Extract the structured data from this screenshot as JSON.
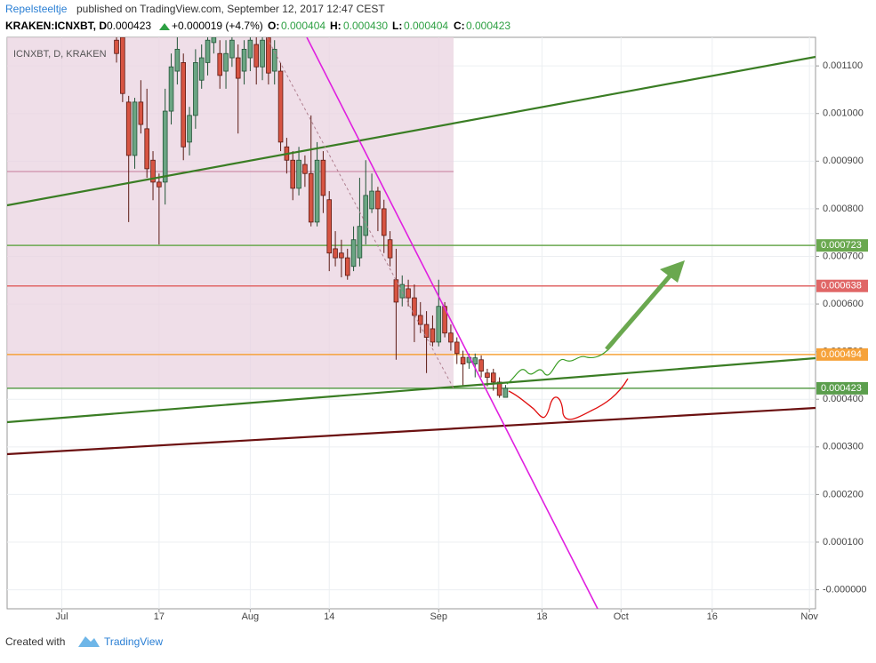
{
  "header": {
    "author": "Repelsteeltje",
    "published": "published on TradingView.com, September 12, 2017 12:47 CEST",
    "symbol": "KRAKEN:ICNXBT, D",
    "price": "0.000423",
    "change": "+0.000019 (+4.7%)",
    "open_label": "O:",
    "open": "0.000404",
    "high_label": "H:",
    "high": "0.000430",
    "low_label": "L:",
    "low": "0.000404",
    "close_label": "C:",
    "close": "0.000423"
  },
  "footer": {
    "created": "Created with",
    "brand": "TradingView"
  },
  "chart_data": {
    "type": "candlestick",
    "legend": "ICNXBT, D, KRAKEN",
    "up_color": "#6ba583",
    "down_color": "#d75442",
    "x": [
      "2017-07-10",
      "2017-07-11",
      "2017-07-12",
      "2017-07-13",
      "2017-07-14",
      "2017-07-15",
      "2017-07-16",
      "2017-07-17",
      "2017-07-18",
      "2017-07-19",
      "2017-07-20",
      "2017-07-21",
      "2017-07-22",
      "2017-07-23",
      "2017-07-24",
      "2017-07-25",
      "2017-07-26",
      "2017-07-27",
      "2017-07-28",
      "2017-07-29",
      "2017-07-30",
      "2017-07-31",
      "2017-08-01",
      "2017-08-02",
      "2017-08-03",
      "2017-08-04",
      "2017-08-05",
      "2017-08-06",
      "2017-08-07",
      "2017-08-08",
      "2017-08-09",
      "2017-08-10",
      "2017-08-11",
      "2017-08-12",
      "2017-08-13",
      "2017-08-14",
      "2017-08-15",
      "2017-08-16",
      "2017-08-17",
      "2017-08-18",
      "2017-08-19",
      "2017-08-20",
      "2017-08-21",
      "2017-08-22",
      "2017-08-23",
      "2017-08-24",
      "2017-08-25",
      "2017-08-26",
      "2017-08-27",
      "2017-08-28",
      "2017-08-29",
      "2017-08-30",
      "2017-08-31",
      "2017-09-01",
      "2017-09-02",
      "2017-09-03",
      "2017-09-04",
      "2017-09-05",
      "2017-09-06",
      "2017-09-07",
      "2017-09-08",
      "2017-09-09",
      "2017-09-10",
      "2017-09-11",
      "2017-09-12"
    ],
    "open": [
      0.001154,
      0.00116,
      0.001024,
      0.000912,
      0.001024,
      0.000968,
      0.000902,
      0.000856,
      0.000856,
      0.001005,
      0.001089,
      0.001107,
      0.00094,
      0.000996,
      0.00107,
      0.001107,
      0.001149,
      0.001126,
      0.001089,
      0.001117,
      0.001117,
      0.001089,
      0.001117,
      0.001145,
      0.001098,
      0.00116,
      0.001089,
      0.001089,
      0.00093,
      0.000902,
      0.000843,
      0.000893,
      0.000874,
      0.000772,
      0.000902,
      0.000819,
      0.000716,
      0.000707,
      0.000697,
      0.000679,
      0.000697,
      0.000744,
      0.0008,
      0.000837,
      0.0008,
      0.000735,
      0.000651,
      0.000613,
      0.000632,
      0.000613,
      0.000576,
      0.000557,
      0.000548,
      0.00052,
      0.000595,
      0.000539,
      0.00052,
      0.000488,
      0.000477,
      0.000474,
      0.000483,
      0.000455,
      0.000455,
      0.000436,
      0.000404
    ],
    "high": [
      0.001173,
      0.001167,
      0.001037,
      0.001033,
      0.00107,
      0.001052,
      0.000921,
      0.000874,
      0.001052,
      0.001126,
      0.00116,
      0.001126,
      0.001014,
      0.001135,
      0.001145,
      0.00116,
      0.001166,
      0.001154,
      0.001154,
      0.001166,
      0.001145,
      0.001154,
      0.001166,
      0.001166,
      0.001166,
      0.001167,
      0.001154,
      0.001107,
      0.000949,
      0.000921,
      0.00093,
      0.000912,
      0.000996,
      0.00094,
      0.000921,
      0.000837,
      0.000753,
      0.000735,
      0.000716,
      0.000763,
      0.000865,
      0.000902,
      0.000874,
      0.000846,
      0.000819,
      0.000753,
      0.000716,
      0.00066,
      0.000651,
      0.000641,
      0.000604,
      0.000585,
      0.000576,
      0.000651,
      0.000604,
      0.000557,
      0.00053,
      0.000502,
      0.000496,
      0.000496,
      0.000492,
      0.000464,
      0.000464,
      0.000446,
      0.00043
    ],
    "low": [
      0.001107,
      0.001024,
      0.000772,
      0.000884,
      0.000958,
      0.000865,
      0.000818,
      0.000725,
      0.000809,
      0.000977,
      0.001061,
      0.000902,
      0.000912,
      0.000968,
      0.001052,
      0.00108,
      0.001126,
      0.001052,
      0.001052,
      0.001098,
      0.000958,
      0.001061,
      0.001089,
      0.001061,
      0.00107,
      0.001061,
      0.001061,
      0.000921,
      0.000874,
      0.000818,
      0.000828,
      0.000846,
      0.000763,
      0.000763,
      0.000791,
      0.000669,
      0.000679,
      0.000656,
      0.000651,
      0.000669,
      0.000679,
      0.000725,
      0.000791,
      0.000753,
      0.000707,
      0.000679,
      0.000483,
      0.000595,
      0.000595,
      0.00052,
      0.000539,
      0.000455,
      0.000511,
      0.000511,
      0.00053,
      0.000502,
      0.000474,
      0.000427,
      0.000464,
      0.000446,
      0.000446,
      0.000427,
      0.000418,
      0.000403,
      0.000404
    ],
    "close": [
      0.001126,
      0.001042,
      0.000912,
      0.001024,
      0.000977,
      0.000884,
      0.000856,
      0.000846,
      0.001005,
      0.001098,
      0.001135,
      0.00093,
      0.000996,
      0.001107,
      0.001117,
      0.001154,
      0.00116,
      0.00108,
      0.001126,
      0.001154,
      0.001074,
      0.001135,
      0.001154,
      0.001098,
      0.001154,
      0.001085,
      0.001135,
      0.00094,
      0.000902,
      0.000843,
      0.000902,
      0.000874,
      0.000772,
      0.000902,
      0.000828,
      0.000707,
      0.000697,
      0.000697,
      0.00066,
      0.000735,
      0.000763,
      0.000828,
      0.000837,
      0.0008,
      0.000744,
      0.000697,
      0.000604,
      0.000641,
      0.000613,
      0.000576,
      0.000557,
      0.00053,
      0.00052,
      0.000595,
      0.000539,
      0.00052,
      0.000496,
      0.000474,
      0.000488,
      0.000487,
      0.000459,
      0.000446,
      0.000436,
      0.000408,
      0.000423
    ],
    "levels": [
      {
        "value": 0.000723,
        "color": "#6aa84f"
      },
      {
        "value": 0.000638,
        "color": "#e06666"
      },
      {
        "value": 0.000494,
        "color": "#f6a23a"
      },
      {
        "value": 0.000423,
        "color": "#5b9e4d"
      }
    ],
    "xlim": [
      "2017-06-22",
      "2017-11-02"
    ],
    "xticks": [
      {
        "value": "2017-07-01",
        "label": "Jul"
      },
      {
        "value": "2017-07-17",
        "label": "17"
      },
      {
        "value": "2017-08-01",
        "label": "Aug"
      },
      {
        "value": "2017-08-14",
        "label": "14"
      },
      {
        "value": "2017-09-01",
        "label": "Sep"
      },
      {
        "value": "2017-09-18",
        "label": "18"
      },
      {
        "value": "2017-10-01",
        "label": "Oct"
      },
      {
        "value": "2017-10-16",
        "label": "16"
      },
      {
        "value": "2017-11-01",
        "label": "Nov"
      }
    ],
    "ylim": [
      -4e-05,
      0.00116
    ],
    "yticks": [
      {
        "value": 0,
        "label": "-0.000000"
      },
      {
        "value": 0.0001,
        "label": "0.000100"
      },
      {
        "value": 0.0002,
        "label": "0.000200"
      },
      {
        "value": 0.0003,
        "label": "0.000300"
      },
      {
        "value": 0.0004,
        "label": "0.000400"
      },
      {
        "value": 0.0005,
        "label": "0.000500"
      },
      {
        "value": 0.0006,
        "label": "0.000600"
      },
      {
        "value": 0.0007,
        "label": "0.000700"
      },
      {
        "value": 0.0008,
        "label": "0.000800"
      },
      {
        "value": 0.0009,
        "label": "0.000900"
      },
      {
        "value": 0.001,
        "label": "0.001000"
      },
      {
        "value": 0.0011,
        "label": "0.001100"
      }
    ],
    "grid": true
  }
}
